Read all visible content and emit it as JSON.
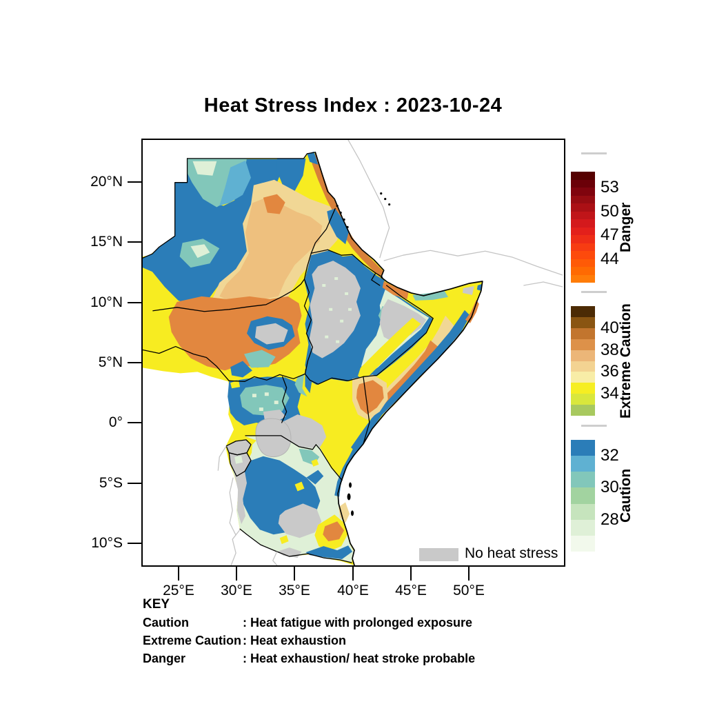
{
  "title": "Heat Stress Index : 2023-10-24",
  "map": {
    "no_data_label": "No heat stress",
    "no_data_color": "#c9c9c9"
  },
  "key": {
    "heading": "KEY",
    "rows": [
      {
        "term": "Caution",
        "description": ": Heat fatigue with prolonged exposure"
      },
      {
        "term": "Extreme Caution",
        "description": ": Heat exhaustion"
      },
      {
        "term": "Danger",
        "description": ": Heat exhaustion/ heat stroke probable"
      }
    ]
  },
  "chart_data": {
    "type": "heatmap",
    "title": "Heat Stress Index : 2023-10-24",
    "date_shown": "2023-10-24",
    "x_ticks": [
      "25°E",
      "30°E",
      "35°E",
      "40°E",
      "45°E",
      "50°E"
    ],
    "y_ticks": [
      "20°N",
      "15°N",
      "10°N",
      "5°N",
      "0°",
      "5°S",
      "10°S"
    ],
    "no_data_label": "No heat stress",
    "no_data_color": "#c9c9c9",
    "color_scales": [
      {
        "id": "danger",
        "name": "Danger",
        "meaning": "Heat exhaustion/ heat stroke probable",
        "approx_value_range": [
          41,
          55
        ],
        "labeled_values": [
          44,
          47,
          50,
          53
        ],
        "colors": [
          "#550000",
          "#6b0008",
          "#80040e",
          "#960c12",
          "#ab1015",
          "#c01519",
          "#d4191c",
          "#e3201b",
          "#ee2d17",
          "#f73c12",
          "#fd4a0c",
          "#ff5a06",
          "#ff6a02",
          "#ff7c08"
        ]
      },
      {
        "id": "extreme_caution",
        "name": "Extreme Caution",
        "meaning": "Heat exhaustion",
        "approx_value_range": [
          32,
          42
        ],
        "labeled_values": [
          34,
          36,
          38,
          40
        ],
        "colors": [
          "#4c2b05",
          "#8a5512",
          "#c2752e",
          "#dd9149",
          "#ecb678",
          "#f3d392",
          "#f8eda7",
          "#f6ee22",
          "#d9e73c",
          "#a8c95f"
        ]
      },
      {
        "id": "caution",
        "name": "Caution",
        "meaning": "Heat fatigue with prolonged exposure",
        "approx_value_range": [
          26,
          33
        ],
        "labeled_values": [
          28,
          30,
          32
        ],
        "colors": [
          "#2b7db8",
          "#5fb1d2",
          "#82c7ba",
          "#a2d3a0",
          "#c6e4bd",
          "#dff0d7",
          "#f2f9ec"
        ]
      }
    ]
  }
}
